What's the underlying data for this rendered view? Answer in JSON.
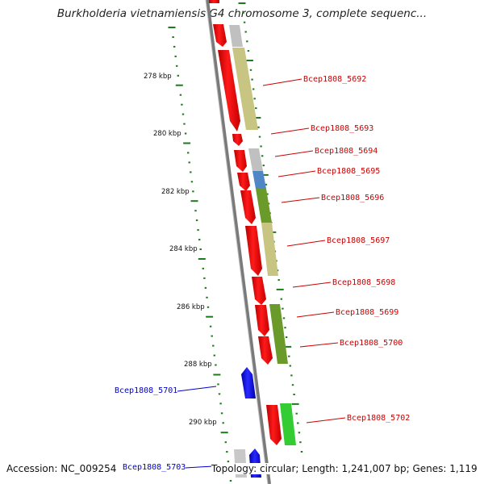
{
  "title": "Burkholderia vietnamiensis G4 chromosome 3, complete sequenc...",
  "footer": {
    "accession": "Accession: NC_009254",
    "summary": "Topology: circular; Length: 1,241,007 bp; Genes: 1,119"
  },
  "colors": {
    "gene_red": "#ff0000",
    "gene_blue": "#1a1aff",
    "label_red": "#cc0000",
    "label_blue": "#0000cc",
    "tick_green": "#1d7a1d",
    "backbone": "#777777",
    "khaki": "#c8c482",
    "grey": "#c0c0c0",
    "steel_blue": "#4f86c6",
    "olive": "#6a9a2a",
    "bright_green": "#33cc33"
  },
  "kbp_ticks": [
    {
      "label": "278 kbp",
      "kbp": 278
    },
    {
      "label": "280 kbp",
      "kbp": 280
    },
    {
      "label": "282 kbp",
      "kbp": 282
    },
    {
      "label": "284 kbp",
      "kbp": 284
    },
    {
      "label": "286 kbp",
      "kbp": 286
    },
    {
      "label": "288 kbp",
      "kbp": 288
    },
    {
      "label": "290 kbp",
      "kbp": 290
    }
  ],
  "gene_labels": [
    {
      "name": "Bcep1808_5692",
      "strand": "+"
    },
    {
      "name": "Bcep1808_5693",
      "strand": "+"
    },
    {
      "name": "Bcep1808_5694",
      "strand": "+"
    },
    {
      "name": "Bcep1808_5695",
      "strand": "+"
    },
    {
      "name": "Bcep1808_5696",
      "strand": "+"
    },
    {
      "name": "Bcep1808_5697",
      "strand": "+"
    },
    {
      "name": "Bcep1808_5698",
      "strand": "+"
    },
    {
      "name": "Bcep1808_5699",
      "strand": "+"
    },
    {
      "name": "Bcep1808_5700",
      "strand": "+"
    },
    {
      "name": "Bcep1808_5701",
      "strand": "-"
    },
    {
      "name": "Bcep1808_5702",
      "strand": "+"
    },
    {
      "name": "Bcep1808_5703",
      "strand": "-"
    }
  ]
}
